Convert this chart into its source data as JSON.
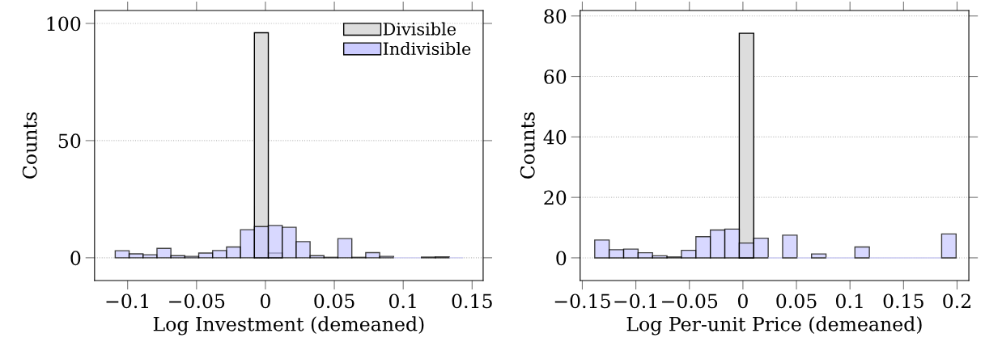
{
  "chart_data": [
    {
      "type": "histogram",
      "xlabel": "Log Investment (demeaned)",
      "ylabel": "Counts",
      "bins": [
        -0.109,
        -0.0989,
        -0.0888,
        -0.0787,
        -0.0686,
        -0.0585,
        -0.0484,
        -0.0383,
        -0.0282,
        -0.0181,
        -0.008,
        0.0021,
        0.0122,
        0.0223,
        0.0324,
        0.0425,
        0.0526,
        0.0627,
        0.0728,
        0.0829,
        0.093,
        0.1031,
        0.1132,
        0.1233,
        0.1334,
        0.1435
      ],
      "series": [
        {
          "name": "Divisible",
          "color": "#dddddd",
          "values": [
            0,
            0,
            0,
            0,
            0,
            0,
            0,
            0,
            0,
            0,
            96,
            2,
            0,
            0,
            0,
            0,
            0,
            0,
            0,
            0,
            0,
            0,
            0,
            0,
            0
          ]
        },
        {
          "name": "Indivisible",
          "color": "#ccccff",
          "values": [
            3.0,
            1.7,
            1.3,
            4.0,
            0.9,
            0.6,
            2.0,
            3.1,
            4.6,
            12.0,
            13.3,
            13.8,
            13.0,
            6.9,
            0.9,
            0.2,
            8.2,
            0.2,
            2.2,
            0.6,
            0,
            0,
            0.3,
            0.4,
            0
          ]
        }
      ],
      "xlim": [
        -0.124,
        0.158
      ],
      "ylim": [
        -9.7,
        105.5
      ],
      "xticks": [
        {
          "value": -0.1,
          "label": "−0.1"
        },
        {
          "value": -0.05,
          "label": "−0.05"
        },
        0,
        0.05,
        0.1,
        0.15
      ],
      "yticks": [
        0,
        50,
        100
      ],
      "grid": "y",
      "legend": "top right"
    },
    {
      "type": "histogram",
      "xlabel": "Log Per-unit Price (demeaned)",
      "ylabel": "Counts",
      "bins": [
        -0.1384,
        -0.1249,
        -0.1114,
        -0.0979,
        -0.0844,
        -0.0709,
        -0.0574,
        -0.0439,
        -0.0304,
        -0.0169,
        -0.0034,
        0.0101,
        0.0236,
        0.0371,
        0.0506,
        0.0641,
        0.0776,
        0.0911,
        0.1046,
        0.1181,
        0.1316,
        0.1451,
        0.1586,
        0.1721,
        0.1856,
        0.1991
      ],
      "series": [
        {
          "color": "#dddddd",
          "values": [
            0,
            0,
            0,
            0,
            0,
            0,
            0,
            0,
            0,
            0,
            74.3,
            0,
            0,
            0,
            0,
            0,
            0,
            0,
            0,
            0,
            0,
            0,
            0,
            0,
            0
          ]
        },
        {
          "color": "#ccccff",
          "values": [
            5.9,
            2.7,
            2.9,
            1.7,
            0.7,
            0.3,
            2.5,
            7.0,
            9.2,
            9.5,
            4.9,
            6.5,
            0,
            7.5,
            0,
            1.3,
            0,
            0,
            3.6,
            0,
            0,
            0,
            0,
            0,
            7.9
          ]
        }
      ],
      "xlim": [
        -0.152,
        0.211
      ],
      "ylim": [
        -7.5,
        81.8
      ],
      "xticks": [
        {
          "value": -0.15,
          "label": "−0.15"
        },
        {
          "value": -0.1,
          "label": "−0.1"
        },
        {
          "value": -0.05,
          "label": "−0.05"
        },
        0,
        0.05,
        0.1,
        0.15,
        0.2
      ],
      "yticks": [
        0,
        20,
        40,
        60,
        80
      ],
      "grid": "y"
    }
  ]
}
